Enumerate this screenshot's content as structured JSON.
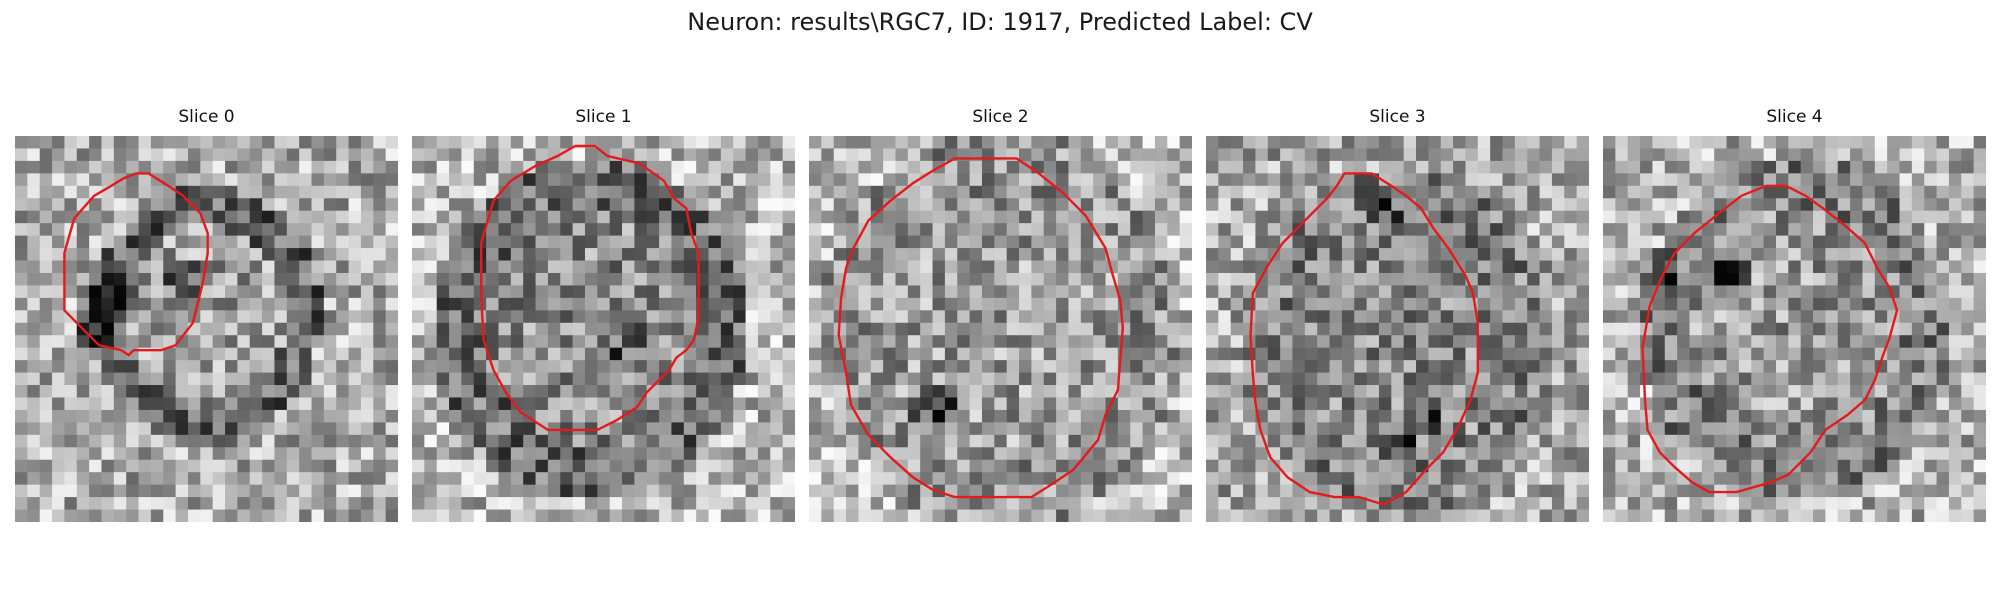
{
  "figure": {
    "title": "Neuron: results\\RGC7, ID: 1917, Predicted Label: CV"
  },
  "panels": [
    {
      "title": "Slice 0"
    },
    {
      "title": "Slice 1"
    },
    {
      "title": "Slice 2"
    },
    {
      "title": "Slice 3"
    },
    {
      "title": "Slice 4"
    }
  ],
  "colors": {
    "contour": "#e41a1c",
    "background": "#ffffff"
  }
}
